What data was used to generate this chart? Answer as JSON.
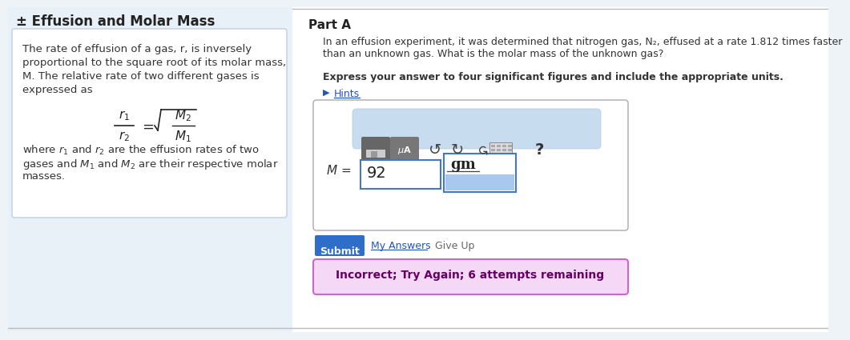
{
  "title": "± Effusion and Molar Mass",
  "bg_color": "#eef3f8",
  "left_panel_bg": "#e8f0f8",
  "right_bg": "#ffffff",
  "left_box_bg": "#ffffff",
  "left_box_border": "#c0cfe0",
  "left_text1": "The rate of effusion of a gas, r, is inversely",
  "left_text2": "proportional to the square root of its molar mass,",
  "left_text3": "M. The relative rate of two different gases is",
  "left_text4": "expressed as",
  "left_text5": "where $r_1$ and $r_2$ are the effusion rates of two",
  "left_text6": "gases and $M_1$ and $M_2$ are their respective molar",
  "left_text7": "masses.",
  "part_a_label": "Part A",
  "question_text1": "In an effusion experiment, it was determined that nitrogen gas, N₂, effused at a rate 1.812 times faster",
  "question_text2": "than an unknown gas. What is the molar mass of the unknown gas?",
  "bold_text": "Express your answer to four significant figures and include the appropriate units.",
  "hints_text": "Hints",
  "input_value": "92",
  "unit_text": "gm",
  "m_label": "M =",
  "submit_text": "Submit",
  "my_answers_text": "My Answers",
  "give_up_text": "Give Up",
  "incorrect_text": "Incorrect; Try Again; 6 attempts remaining",
  "submit_bg": "#2e6ec8",
  "submit_color": "#ffffff",
  "incorrect_bg": "#f5d8f5",
  "incorrect_border": "#cc66cc",
  "incorrect_text_color": "#660066",
  "toolbar_bg": "#c8dcf0",
  "input_border": "#4477cc",
  "unit_highlight": "#a8c8f0",
  "divider_color": "#bbbbbb",
  "hints_color": "#2255bb",
  "title_color": "#222222",
  "left_divider": "#cccccc"
}
